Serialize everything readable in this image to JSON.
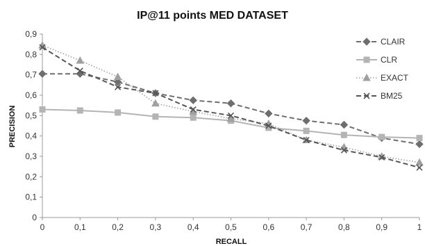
{
  "chart_data": {
    "type": "line",
    "title": "IP@11 points MED DATASET",
    "xlabel": "RECALL",
    "ylabel": "PRECISION",
    "x": [
      0,
      0.1,
      0.2,
      0.3,
      0.4,
      0.5,
      0.6,
      0.7,
      0.8,
      0.9,
      1
    ],
    "x_tick_labels": [
      "0",
      "0,1",
      "0,2",
      "0,3",
      "0,4",
      "0,5",
      "0,6",
      "0,7",
      "0,8",
      "0,9",
      "1"
    ],
    "xlim": [
      0,
      1
    ],
    "ylim": [
      0,
      0.9
    ],
    "y_ticks": [
      0,
      0.1,
      0.2,
      0.3,
      0.4,
      0.5,
      0.6,
      0.7,
      0.8,
      0.9
    ],
    "y_tick_labels": [
      "0",
      "0,1",
      "0,2",
      "0,3",
      "0,4",
      "0,5",
      "0,6",
      "0,7",
      "0,8",
      "0,9"
    ],
    "grid": false,
    "legend_position": "top-right",
    "series": [
      {
        "name": "CLAIR",
        "values": [
          0.705,
          0.705,
          0.665,
          0.61,
          0.575,
          0.56,
          0.51,
          0.475,
          0.455,
          0.39,
          0.36
        ],
        "color": "#6e6e6e",
        "marker": "diamond",
        "dash": "dashed"
      },
      {
        "name": "CLR",
        "values": [
          0.53,
          0.525,
          0.515,
          0.495,
          0.49,
          0.475,
          0.44,
          0.425,
          0.405,
          0.395,
          0.39
        ],
        "color": "#b4b4b4",
        "marker": "square",
        "dash": "solid"
      },
      {
        "name": "EXACT",
        "values": [
          0.845,
          0.77,
          0.69,
          0.56,
          0.52,
          0.485,
          0.46,
          0.38,
          0.345,
          0.3,
          0.27
        ],
        "color": "#a0a0a0",
        "marker": "triangle",
        "dash": "dotted"
      },
      {
        "name": "BM25",
        "values": [
          0.835,
          0.72,
          0.64,
          0.61,
          0.53,
          0.5,
          0.45,
          0.38,
          0.33,
          0.295,
          0.245
        ],
        "color": "#555555",
        "marker": "x",
        "dash": "dashed"
      }
    ]
  }
}
